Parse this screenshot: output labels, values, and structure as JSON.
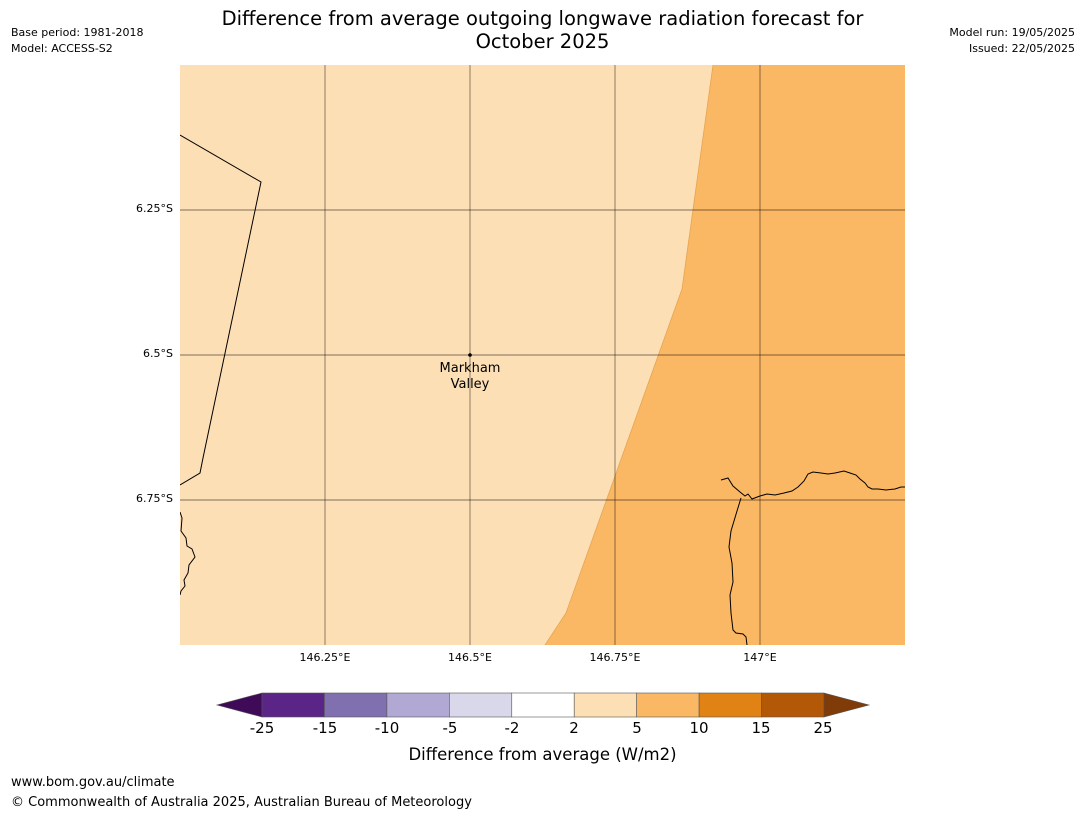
{
  "title": {
    "line1": "Difference from average outgoing longwave radiation forecast for",
    "line2": "October 2025"
  },
  "meta_left": {
    "base_period": "Base period: 1981-2018",
    "model": "Model: ACCESS-S2"
  },
  "meta_right": {
    "model_run": "Model run: 19/05/2025",
    "issued": "Issued: 22/05/2025"
  },
  "map": {
    "place_label_line1": "Markham",
    "place_label_line2": "Valley",
    "lat_ticks": [
      "6.25°S",
      "6.5°S",
      "6.75°S"
    ],
    "lon_ticks": [
      "146.25°E",
      "146.5°E",
      "146.75°E",
      "147°E"
    ],
    "fill_colors": {
      "band_2_to_5": "#fddfb5",
      "band_5_to_10": "#fab764"
    }
  },
  "colorbar": {
    "label": "Difference from average (W/m2)",
    "ticks": [
      "-25",
      "-15",
      "-10",
      "-5",
      "-2",
      "2",
      "5",
      "10",
      "15",
      "25"
    ],
    "colors": [
      "#3f0a57",
      "#5a2586",
      "#8170b0",
      "#b1a8d3",
      "#d8d8ea",
      "#ffffff",
      "#fddfb5",
      "#fab764",
      "#e08214",
      "#b35807",
      "#7f3b08"
    ]
  },
  "footer": {
    "url": "www.bom.gov.au/climate",
    "copyright": "© Commonwealth of Australia 2025, Australian Bureau of Meteorology"
  }
}
